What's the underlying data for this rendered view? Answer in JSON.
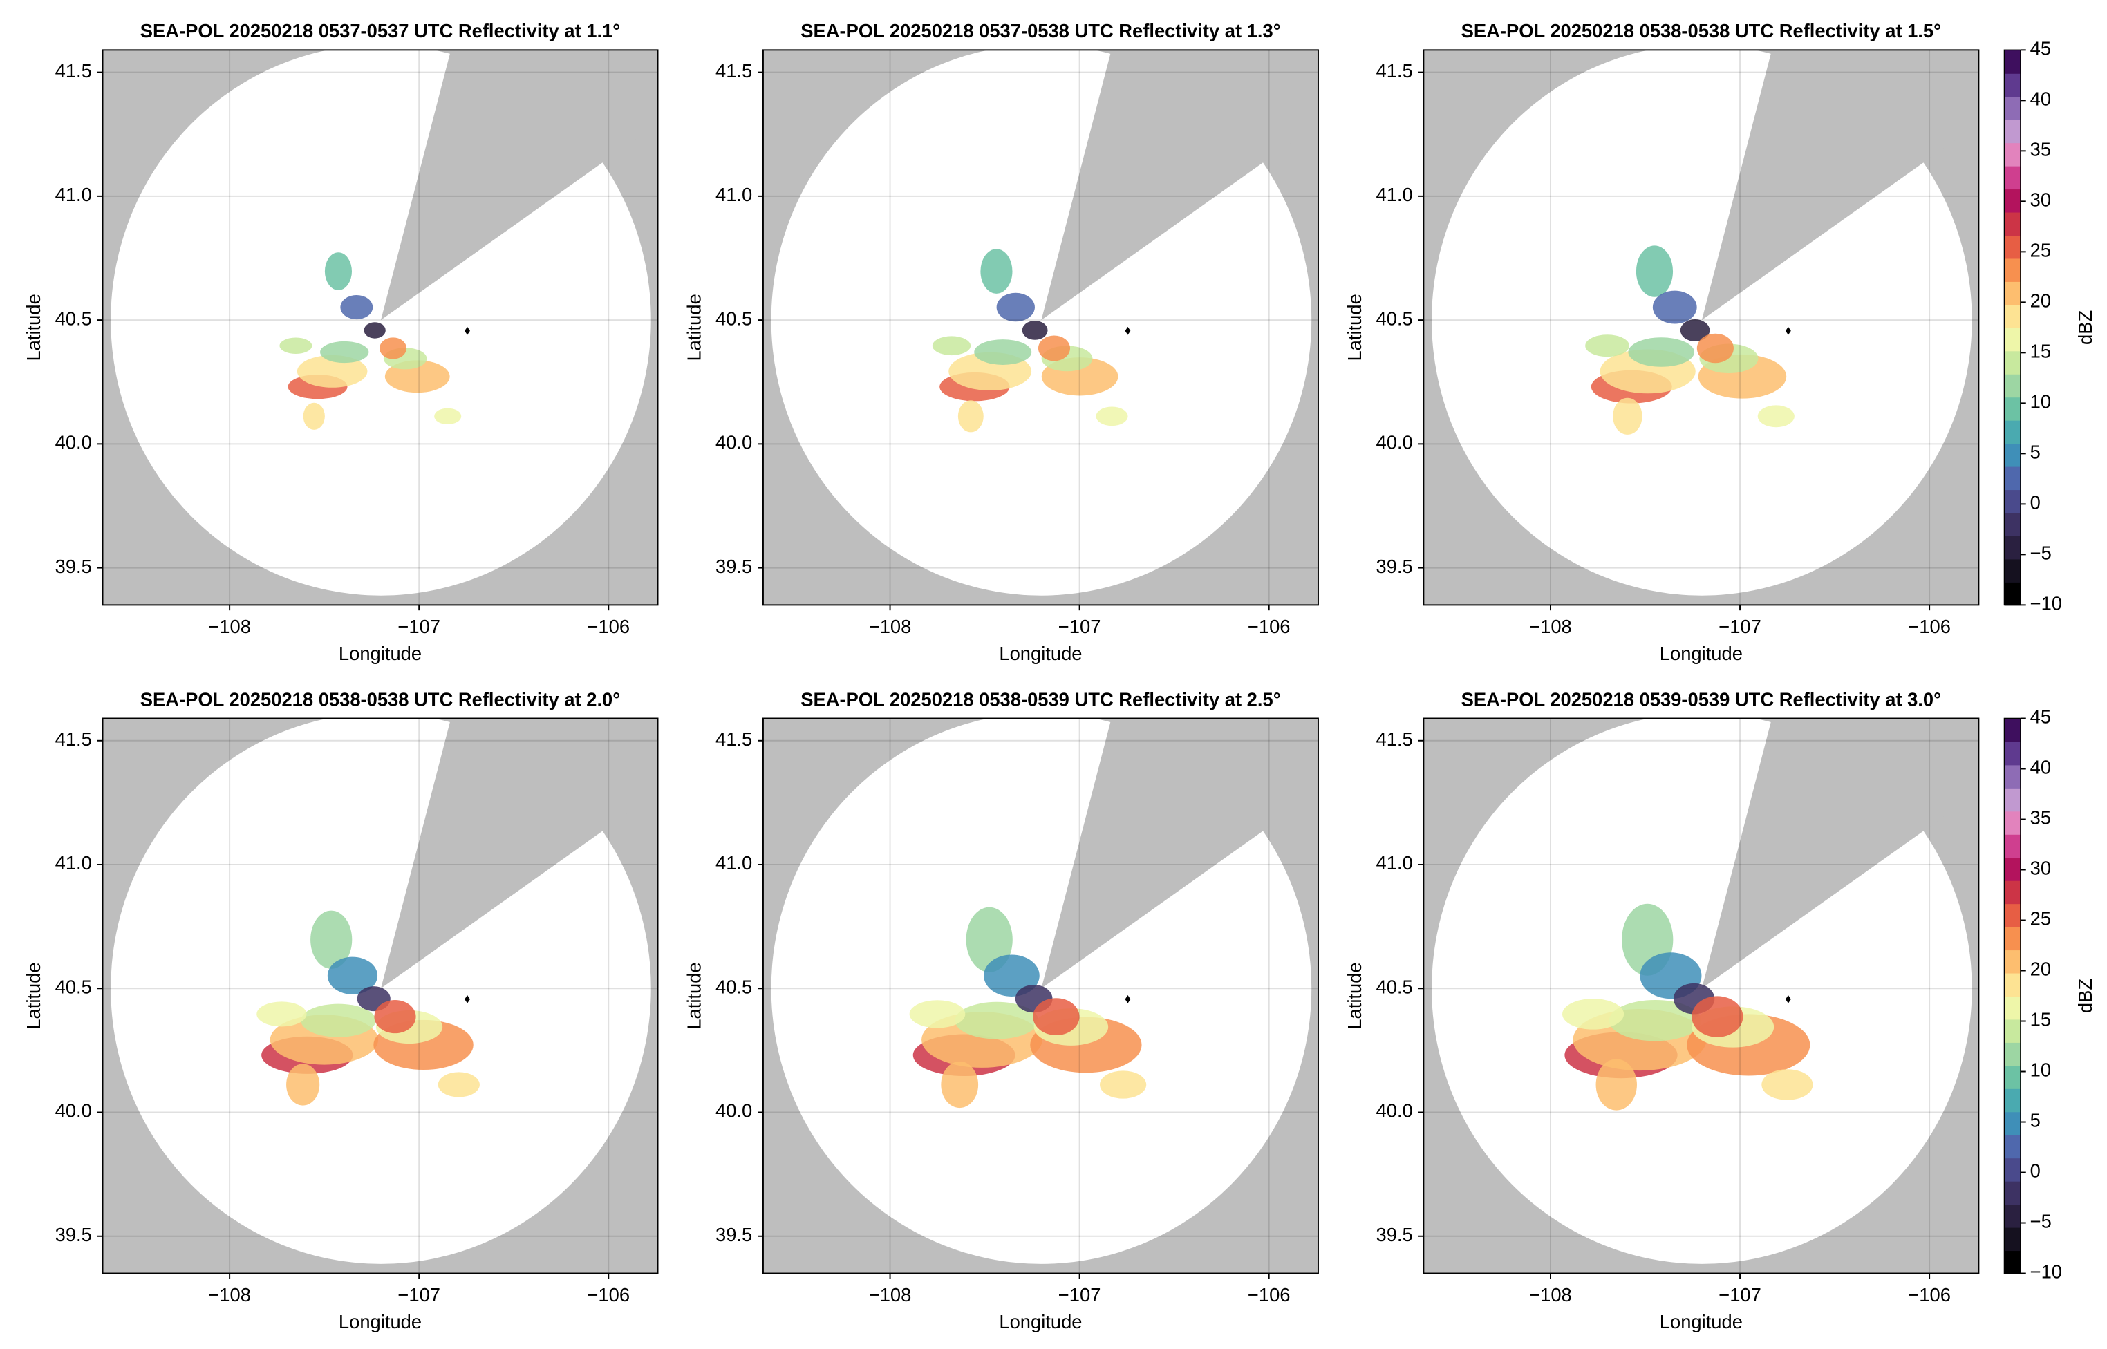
{
  "chart_data": [
    {
      "type": "radar-ppi",
      "title": "SEA-POL 20250218 0537-0537 UTC Reflectivity at 1.1°",
      "xlabel": "Longitude",
      "ylabel": "Latitude",
      "xlim": [
        -108.67,
        -105.74
      ],
      "ylim": [
        39.35,
        41.59
      ],
      "xticks": [
        {
          "value": -108,
          "label": "−108"
        },
        {
          "value": -107,
          "label": "−107"
        },
        {
          "value": -106,
          "label": "−106"
        }
      ],
      "yticks": [
        39.5,
        {
          "value": 40.0,
          "label": "40.0"
        },
        40.5,
        {
          "value": 41.0,
          "label": "41.0"
        },
        41.5
      ],
      "grid": true
    },
    {
      "type": "radar-ppi",
      "title": "SEA-POL 20250218 0537-0538 UTC Reflectivity at 1.3°",
      "xlabel": "Longitude",
      "ylabel": "Latitude",
      "xlim": [
        -108.67,
        -105.74
      ],
      "ylim": [
        39.35,
        41.59
      ],
      "xticks": [
        {
          "value": -108,
          "label": "−108"
        },
        {
          "value": -107,
          "label": "−107"
        },
        {
          "value": -106,
          "label": "−106"
        }
      ],
      "yticks": [
        39.5,
        {
          "value": 40.0,
          "label": "40.0"
        },
        40.5,
        {
          "value": 41.0,
          "label": "41.0"
        },
        41.5
      ],
      "grid": true
    },
    {
      "type": "radar-ppi",
      "title": "SEA-POL 20250218 0538-0538 UTC Reflectivity at 1.5°",
      "xlabel": "Longitude",
      "ylabel": "Latitude",
      "xlim": [
        -108.67,
        -105.74
      ],
      "ylim": [
        39.35,
        41.59
      ],
      "xticks": [
        {
          "value": -108,
          "label": "−108"
        },
        {
          "value": -107,
          "label": "−107"
        },
        {
          "value": -106,
          "label": "−106"
        }
      ],
      "yticks": [
        39.5,
        {
          "value": 40.0,
          "label": "40.0"
        },
        40.5,
        {
          "value": 41.0,
          "label": "41.0"
        },
        41.5
      ],
      "grid": true,
      "colorbar": {
        "label": "dBZ",
        "lim": [
          -10,
          45
        ],
        "ticks": [
          {
            "value": -10,
            "label": "−10"
          },
          {
            "value": -5,
            "label": "−5"
          },
          0,
          5,
          10,
          15,
          20,
          25,
          30,
          35,
          40,
          45
        ],
        "colors": [
          "#000000",
          "#15111f",
          "#2a2040",
          "#3d3263",
          "#4a4a8c",
          "#4f68ad",
          "#3f8fb8",
          "#4aaab0",
          "#6cc2a4",
          "#9dd6a3",
          "#c8e99e",
          "#eef6a9",
          "#fde393",
          "#fdbe6f",
          "#f7904f",
          "#e75e44",
          "#cc3446",
          "#b3135d",
          "#cf3f8f",
          "#e283bd",
          "#c199d0",
          "#8e6cb5",
          "#5f3a8f",
          "#3e0f5e"
        ]
      }
    },
    {
      "type": "radar-ppi",
      "title": "SEA-POL 20250218 0538-0538 UTC Reflectivity at 2.0°",
      "xlabel": "Longitude",
      "ylabel": "Latitude",
      "xlim": [
        -108.67,
        -105.74
      ],
      "ylim": [
        39.35,
        41.59
      ],
      "xticks": [
        {
          "value": -108,
          "label": "−108"
        },
        {
          "value": -107,
          "label": "−107"
        },
        {
          "value": -106,
          "label": "−106"
        }
      ],
      "yticks": [
        39.5,
        {
          "value": 40.0,
          "label": "40.0"
        },
        40.5,
        {
          "value": 41.0,
          "label": "41.0"
        },
        41.5
      ],
      "grid": true
    },
    {
      "type": "radar-ppi",
      "title": "SEA-POL 20250218 0538-0539 UTC Reflectivity at 2.5°",
      "xlabel": "Longitude",
      "ylabel": "Latitude",
      "xlim": [
        -108.67,
        -105.74
      ],
      "ylim": [
        39.35,
        41.59
      ],
      "xticks": [
        {
          "value": -108,
          "label": "−108"
        },
        {
          "value": -107,
          "label": "−107"
        },
        {
          "value": -106,
          "label": "−106"
        }
      ],
      "yticks": [
        39.5,
        {
          "value": 40.0,
          "label": "40.0"
        },
        40.5,
        {
          "value": 41.0,
          "label": "41.0"
        },
        41.5
      ],
      "grid": true
    },
    {
      "type": "radar-ppi",
      "title": "SEA-POL 20250218 0539-0539 UTC Reflectivity at 3.0°",
      "xlabel": "Longitude",
      "ylabel": "Latitude",
      "xlim": [
        -108.67,
        -105.74
      ],
      "ylim": [
        39.35,
        41.59
      ],
      "xticks": [
        {
          "value": -108,
          "label": "−108"
        },
        {
          "value": -107,
          "label": "−107"
        },
        {
          "value": -106,
          "label": "−106"
        }
      ],
      "yticks": [
        39.5,
        {
          "value": 40.0,
          "label": "40.0"
        },
        40.5,
        {
          "value": 41.0,
          "label": "41.0"
        },
        41.5
      ],
      "grid": true,
      "colorbar": {
        "label": "dBZ",
        "lim": [
          -10,
          45
        ],
        "ticks": [
          {
            "value": -10,
            "label": "−10"
          },
          {
            "value": -5,
            "label": "−5"
          },
          0,
          5,
          10,
          15,
          20,
          25,
          30,
          35,
          40,
          45
        ],
        "colors": [
          "#000000",
          "#15111f",
          "#2a2040",
          "#3d3263",
          "#4a4a8c",
          "#4f68ad",
          "#3f8fb8",
          "#4aaab0",
          "#6cc2a4",
          "#9dd6a3",
          "#c8e99e",
          "#eef6a9",
          "#fde393",
          "#fdbe6f",
          "#f7904f",
          "#e75e44",
          "#cc3446",
          "#b3135d",
          "#cf3f8f",
          "#e283bd",
          "#c199d0",
          "#8e6cb5",
          "#5f3a8f",
          "#3e0f5e"
        ]
      }
    }
  ]
}
